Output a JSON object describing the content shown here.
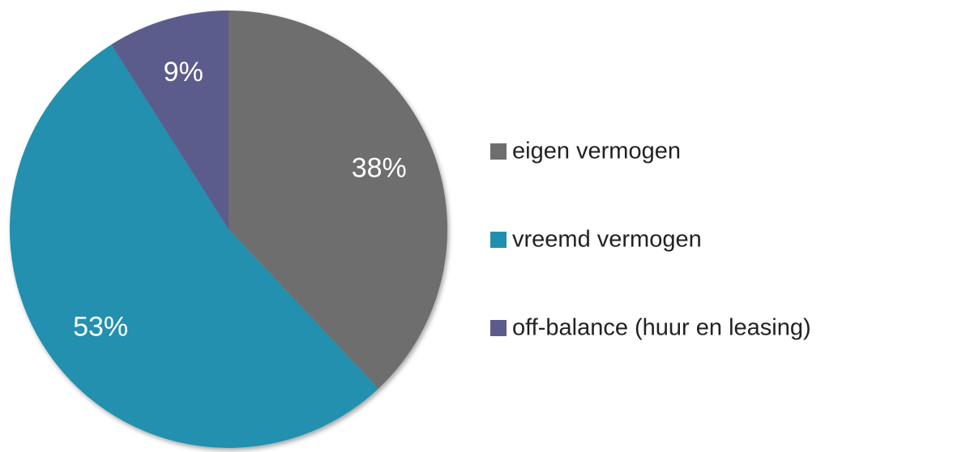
{
  "chart_data": {
    "type": "pie",
    "categories": [
      "eigen vermogen",
      "vreemd vermogen",
      "off-balance (huur en leasing)"
    ],
    "values": [
      38,
      53,
      9
    ],
    "value_labels": [
      "38%",
      "53%",
      "9%"
    ],
    "colors": [
      "#6e6e6e",
      "#2190ae",
      "#5b5b8c"
    ],
    "legend": "right"
  }
}
